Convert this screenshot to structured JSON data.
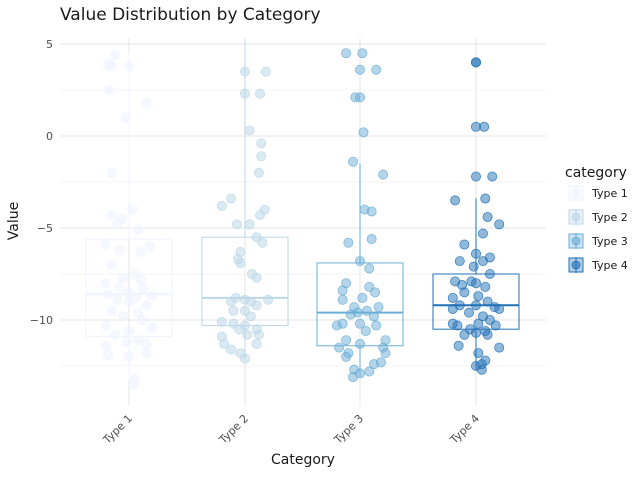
{
  "chart_data": {
    "type": "box",
    "title": "Value Distribution by Category",
    "xlabel": "Category",
    "ylabel": "Value",
    "ylim": [
      -14.5,
      5.3
    ],
    "yticks": [
      5,
      0,
      -5,
      -10
    ],
    "ytick_labels": [
      "5",
      "0",
      "−5",
      "−10"
    ],
    "grid": true,
    "legend": {
      "title": "category",
      "position": "right",
      "entries": [
        "Type 1",
        "Type 2",
        "Type 3",
        "Type 4"
      ]
    },
    "categories": [
      "Type 1",
      "Type 2",
      "Type 3",
      "Type 4"
    ],
    "colors": [
      "#eff3ff",
      "#bdd7e7",
      "#6baed6",
      "#2171b5"
    ],
    "series": [
      {
        "name": "Type 1",
        "box": {
          "whisker_low": -13.3,
          "q1": -10.9,
          "median": -8.6,
          "q3": -5.6,
          "whisker_high": 4.6
        },
        "points": [
          [
            -0.12,
            4.4
          ],
          [
            -0.18,
            3.9
          ],
          [
            -0.15,
            3.8
          ],
          [
            0.0,
            3.8
          ],
          [
            -0.17,
            2.5
          ],
          [
            0.15,
            1.8
          ],
          [
            -0.03,
            1.0
          ],
          [
            -0.15,
            -2.0
          ],
          [
            -0.15,
            -4.3
          ],
          [
            -0.06,
            -4.5
          ],
          [
            0.03,
            -4.0
          ],
          [
            -0.1,
            -4.8
          ],
          [
            0.08,
            -5.1
          ],
          [
            -0.2,
            -5.9
          ],
          [
            0.18,
            -6.0
          ],
          [
            -0.08,
            -6.2
          ],
          [
            0.1,
            -6.3
          ],
          [
            -0.15,
            -7.0
          ],
          [
            0.05,
            -7.5
          ],
          [
            -0.05,
            -7.7
          ],
          [
            0.1,
            -7.8
          ],
          [
            -0.2,
            -8.0
          ],
          [
            -0.08,
            -8.2
          ],
          [
            0.12,
            -8.3
          ],
          [
            0.0,
            -8.5
          ],
          [
            -0.18,
            -8.6
          ],
          [
            0.2,
            -8.7
          ],
          [
            0.06,
            -8.8
          ],
          [
            -0.1,
            -8.9
          ],
          [
            0.0,
            -9.0
          ],
          [
            0.15,
            -9.2
          ],
          [
            -0.15,
            -9.5
          ],
          [
            0.08,
            -9.6
          ],
          [
            -0.05,
            -9.8
          ],
          [
            0.12,
            -10.0
          ],
          [
            -0.2,
            -10.3
          ],
          [
            0.2,
            -10.4
          ],
          [
            0.0,
            -10.6
          ],
          [
            -0.12,
            -10.8
          ],
          [
            0.08,
            -11.1
          ],
          [
            -0.02,
            -11.2
          ],
          [
            0.15,
            -11.3
          ],
          [
            -0.2,
            -11.4
          ],
          [
            -0.18,
            -11.9
          ],
          [
            0.0,
            -12.0
          ],
          [
            0.15,
            -11.8
          ],
          [
            0.05,
            -13.2
          ],
          [
            0.04,
            -13.5
          ]
        ]
      },
      {
        "name": "Type 2",
        "box": {
          "whisker_low": -12.1,
          "q1": -10.3,
          "median": -8.8,
          "q3": -5.5,
          "whisker_high": 5.2
        },
        "points": [
          [
            0.0,
            3.5
          ],
          [
            0.18,
            3.5
          ],
          [
            0.0,
            2.3
          ],
          [
            0.13,
            2.3
          ],
          [
            0.04,
            0.3
          ],
          [
            0.14,
            -0.4
          ],
          [
            0.14,
            -1.1
          ],
          [
            0.12,
            -2.0
          ],
          [
            -0.12,
            -3.4
          ],
          [
            -0.2,
            -3.8
          ],
          [
            0.17,
            -4.0
          ],
          [
            0.13,
            -4.3
          ],
          [
            -0.07,
            -4.8
          ],
          [
            0.04,
            -4.8
          ],
          [
            0.1,
            -5.5
          ],
          [
            0.15,
            -5.8
          ],
          [
            -0.04,
            -6.3
          ],
          [
            -0.06,
            -6.7
          ],
          [
            -0.04,
            -6.9
          ],
          [
            0.06,
            -7.5
          ],
          [
            0.1,
            -7.7
          ],
          [
            -0.08,
            -8.8
          ],
          [
            0.0,
            -8.9
          ],
          [
            0.05,
            -9.0
          ],
          [
            -0.12,
            -9.0
          ],
          [
            0.2,
            -8.9
          ],
          [
            0.1,
            -9.2
          ],
          [
            -0.1,
            -9.5
          ],
          [
            0.0,
            -9.5
          ],
          [
            0.05,
            -9.8
          ],
          [
            -0.2,
            -10.1
          ],
          [
            -0.1,
            -10.2
          ],
          [
            0.0,
            -10.3
          ],
          [
            -0.05,
            -10.5
          ],
          [
            0.1,
            -10.5
          ],
          [
            0.02,
            -10.8
          ],
          [
            -0.2,
            -10.9
          ],
          [
            0.12,
            -10.8
          ],
          [
            -0.18,
            -11.3
          ],
          [
            -0.12,
            -11.6
          ],
          [
            0.1,
            -11.3
          ],
          [
            -0.04,
            -11.8
          ],
          [
            0.0,
            -12.1
          ]
        ]
      },
      {
        "name": "Type 3",
        "box": {
          "whisker_low": -13.1,
          "q1": -11.4,
          "median": -9.6,
          "q3": -6.9,
          "whisker_high": -1.5
        },
        "points": [
          [
            -0.12,
            4.5
          ],
          [
            0.02,
            4.5
          ],
          [
            0.0,
            3.6
          ],
          [
            0.14,
            3.6
          ],
          [
            -0.04,
            2.1
          ],
          [
            0.0,
            2.1
          ],
          [
            0.03,
            0.2
          ],
          [
            -0.06,
            -1.4
          ],
          [
            0.2,
            -2.1
          ],
          [
            0.04,
            -4.0
          ],
          [
            0.1,
            -4.1
          ],
          [
            0.1,
            -5.6
          ],
          [
            -0.1,
            -5.8
          ],
          [
            0.0,
            -6.8
          ],
          [
            0.08,
            -7.2
          ],
          [
            -0.12,
            -8.0
          ],
          [
            0.08,
            -8.2
          ],
          [
            -0.15,
            -8.4
          ],
          [
            0.13,
            -8.5
          ],
          [
            0.02,
            -8.8
          ],
          [
            -0.15,
            -8.9
          ],
          [
            -0.05,
            -9.3
          ],
          [
            0.16,
            -9.3
          ],
          [
            0.06,
            -9.5
          ],
          [
            -0.02,
            -9.6
          ],
          [
            -0.08,
            -9.7
          ],
          [
            0.12,
            -9.8
          ],
          [
            -0.15,
            -10.2
          ],
          [
            0.0,
            -10.2
          ],
          [
            -0.2,
            -10.3
          ],
          [
            0.14,
            -10.3
          ],
          [
            0.05,
            -10.6
          ],
          [
            -0.12,
            -11.1
          ],
          [
            0.22,
            -11.1
          ],
          [
            0.0,
            -11.3
          ],
          [
            0.2,
            -11.5
          ],
          [
            -0.18,
            -11.5
          ],
          [
            -0.1,
            -11.8
          ],
          [
            0.22,
            -11.8
          ],
          [
            -0.12,
            -12.0
          ],
          [
            0.18,
            -12.3
          ],
          [
            0.12,
            -12.4
          ],
          [
            -0.05,
            -12.7
          ],
          [
            0.08,
            -12.8
          ],
          [
            0.0,
            -12.9
          ],
          [
            -0.06,
            -13.1
          ]
        ]
      },
      {
        "name": "Type 4",
        "box": {
          "whisker_low": -12.7,
          "q1": -10.5,
          "median": -9.2,
          "q3": -7.5,
          "whisker_high": -3.4
        },
        "points": [
          [
            0.0,
            4.0
          ],
          [
            0.0,
            4.0
          ],
          [
            0.0,
            0.5
          ],
          [
            0.07,
            0.5
          ],
          [
            0.0,
            -2.2
          ],
          [
            0.14,
            -2.2
          ],
          [
            -0.18,
            -3.5
          ],
          [
            0.08,
            -3.4
          ],
          [
            0.1,
            -4.4
          ],
          [
            0.2,
            -4.8
          ],
          [
            0.06,
            -5.3
          ],
          [
            -0.1,
            -5.9
          ],
          [
            0.0,
            -6.4
          ],
          [
            0.12,
            -6.6
          ],
          [
            -0.14,
            -6.8
          ],
          [
            0.06,
            -6.8
          ],
          [
            -0.02,
            -7.1
          ],
          [
            0.12,
            -7.5
          ],
          [
            -0.18,
            -7.9
          ],
          [
            -0.04,
            -7.9
          ],
          [
            0.0,
            -8.0
          ],
          [
            -0.12,
            -8.1
          ],
          [
            0.08,
            -8.2
          ],
          [
            -0.1,
            -8.5
          ],
          [
            0.02,
            -8.7
          ],
          [
            -0.2,
            -8.8
          ],
          [
            0.1,
            -9.0
          ],
          [
            0.0,
            -9.2
          ],
          [
            -0.14,
            -9.2
          ],
          [
            0.16,
            -9.3
          ],
          [
            -0.2,
            -9.4
          ],
          [
            0.2,
            -9.4
          ],
          [
            -0.06,
            -9.6
          ],
          [
            0.06,
            -9.8
          ],
          [
            -0.2,
            -10.2
          ],
          [
            0.12,
            -10.0
          ],
          [
            0.02,
            -10.2
          ],
          [
            -0.16,
            -10.3
          ],
          [
            0.17,
            -10.3
          ],
          [
            -0.05,
            -10.5
          ],
          [
            0.08,
            -10.6
          ],
          [
            0.0,
            -10.7
          ],
          [
            -0.1,
            -10.8
          ],
          [
            0.1,
            -10.8
          ],
          [
            -0.15,
            -11.4
          ],
          [
            0.2,
            -11.5
          ],
          [
            0.02,
            -11.8
          ],
          [
            0.08,
            -12.2
          ],
          [
            0.05,
            -12.4
          ],
          [
            0.0,
            -12.5
          ],
          [
            0.05,
            -12.7
          ]
        ]
      }
    ]
  }
}
